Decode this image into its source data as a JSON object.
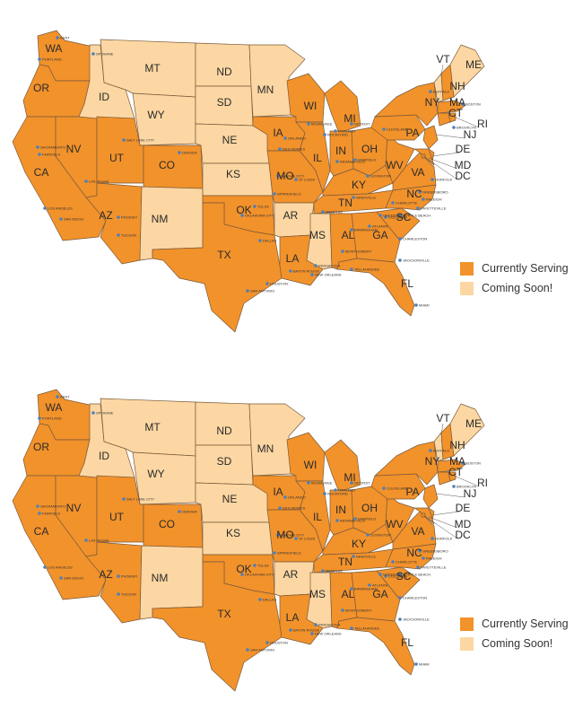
{
  "colors": {
    "serving": "#f2922b",
    "coming": "#fcd7a3"
  },
  "legend": {
    "serving_label": "Currently Serving",
    "coming_label": "Coming Soon!"
  },
  "states": [
    {
      "abbr": "WA",
      "status": "serving"
    },
    {
      "abbr": "OR",
      "status": "serving"
    },
    {
      "abbr": "CA",
      "status": "serving"
    },
    {
      "abbr": "NV",
      "status": "serving"
    },
    {
      "abbr": "ID",
      "status": "coming"
    },
    {
      "abbr": "MT",
      "status": "coming"
    },
    {
      "abbr": "WY",
      "status": "coming"
    },
    {
      "abbr": "UT",
      "status": "serving"
    },
    {
      "abbr": "CO",
      "status": "serving"
    },
    {
      "abbr": "AZ",
      "status": "serving"
    },
    {
      "abbr": "NM",
      "status": "coming"
    },
    {
      "abbr": "ND",
      "status": "coming"
    },
    {
      "abbr": "SD",
      "status": "coming"
    },
    {
      "abbr": "NE",
      "status": "coming"
    },
    {
      "abbr": "KS",
      "status": "coming"
    },
    {
      "abbr": "OK",
      "status": "serving"
    },
    {
      "abbr": "TX",
      "status": "serving"
    },
    {
      "abbr": "MN",
      "status": "coming"
    },
    {
      "abbr": "IA",
      "status": "serving"
    },
    {
      "abbr": "MO",
      "status": "serving"
    },
    {
      "abbr": "AR",
      "status": "coming"
    },
    {
      "abbr": "LA",
      "status": "serving"
    },
    {
      "abbr": "WI",
      "status": "serving"
    },
    {
      "abbr": "IL",
      "status": "serving"
    },
    {
      "abbr": "MI",
      "status": "serving"
    },
    {
      "abbr": "IN",
      "status": "serving"
    },
    {
      "abbr": "OH",
      "status": "serving"
    },
    {
      "abbr": "KY",
      "status": "serving"
    },
    {
      "abbr": "TN",
      "status": "serving"
    },
    {
      "abbr": "MS",
      "status": "coming"
    },
    {
      "abbr": "AL",
      "status": "serving"
    },
    {
      "abbr": "GA",
      "status": "serving"
    },
    {
      "abbr": "FL",
      "status": "serving"
    },
    {
      "abbr": "SC",
      "status": "serving"
    },
    {
      "abbr": "NC",
      "status": "serving"
    },
    {
      "abbr": "VA",
      "status": "serving"
    },
    {
      "abbr": "WV",
      "status": "serving"
    },
    {
      "abbr": "PA",
      "status": "serving"
    },
    {
      "abbr": "NY",
      "status": "serving"
    },
    {
      "abbr": "VT",
      "status": "coming"
    },
    {
      "abbr": "NH",
      "status": "serving"
    },
    {
      "abbr": "ME",
      "status": "coming"
    },
    {
      "abbr": "MA",
      "status": "serving"
    },
    {
      "abbr": "CT",
      "status": "serving"
    },
    {
      "abbr": "RI",
      "status": "serving"
    },
    {
      "abbr": "NJ",
      "status": "serving"
    },
    {
      "abbr": "DE",
      "status": "serving"
    },
    {
      "abbr": "MD",
      "status": "serving"
    },
    {
      "abbr": "DC",
      "status": "serving"
    }
  ],
  "cities": [
    "KENT",
    "SPOKANE",
    "PORTLAND",
    "SACRAMENTO",
    "FAIRFIELD",
    "LAS VEGAS",
    "LOS ANGELES",
    "SAN DIEGO",
    "SALT LAKE CITY",
    "DENVER",
    "PHOENIX",
    "TUCSON",
    "OKLAHOMA CITY",
    "TULSA",
    "DALLAS",
    "HOUSTON",
    "SAN ANTONIO",
    "KANSAS CITY",
    "SPRINGFIELD",
    "ST LOUIS",
    "DES MOINES",
    "ORLANDO",
    "MILWAUKEE",
    "ROCKFORD",
    "OAKLAND",
    "DETROIT",
    "INDIANAPOLIS",
    "FAIRFIELD",
    "CLEVELAND",
    "LEXINGTON",
    "NASHVILLE",
    "MEMPHIS",
    "BIRMINGHAM",
    "MONTGOMERY",
    "BATON ROUGE",
    "NEW ORLEANS",
    "PENSACOLA",
    "TALLAHASSEE",
    "JACKSONVILLE",
    "MIAMI",
    "ATLANTA",
    "COLUMBIA",
    "CHARLESTON",
    "MYRTLE BEACH",
    "GREENVILLE",
    "CHARLOTTE",
    "GREENSBORO",
    "RALEIGH",
    "FAYETTEVILLE",
    "NORFOLK",
    "BUFFALO",
    "BOSTON",
    "BROOKLYN"
  ]
}
